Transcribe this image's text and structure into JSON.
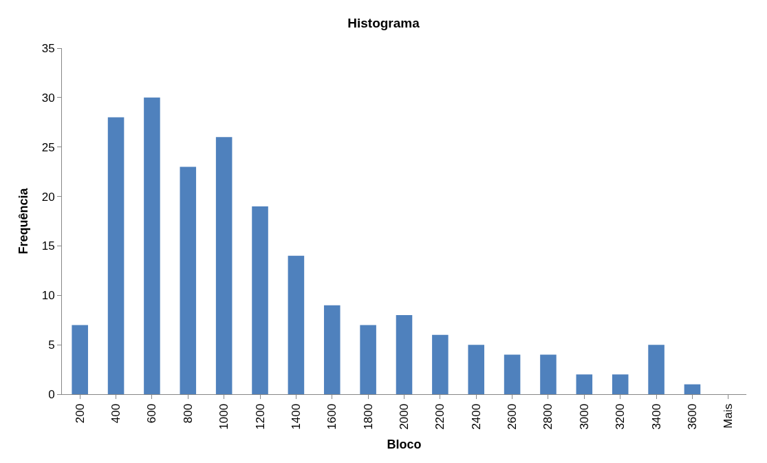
{
  "chart_data": {
    "type": "bar",
    "title": "Histograma",
    "xlabel": "Bloco",
    "ylabel": "Frequência",
    "categories": [
      "200",
      "400",
      "600",
      "800",
      "1000",
      "1200",
      "1400",
      "1600",
      "1800",
      "2000",
      "2200",
      "2400",
      "2600",
      "2800",
      "3000",
      "3200",
      "3400",
      "3600",
      "Mais"
    ],
    "series": [
      {
        "color": "#4f81bd",
        "values": [
          7,
          28,
          30,
          23,
          26,
          19,
          14,
          9,
          7,
          8,
          6,
          5,
          4,
          4,
          2,
          2,
          5,
          1,
          0
        ]
      }
    ],
    "ylim": [
      0,
      35
    ],
    "yticks": [
      0,
      5,
      10,
      15,
      20,
      25,
      30,
      35
    ]
  }
}
